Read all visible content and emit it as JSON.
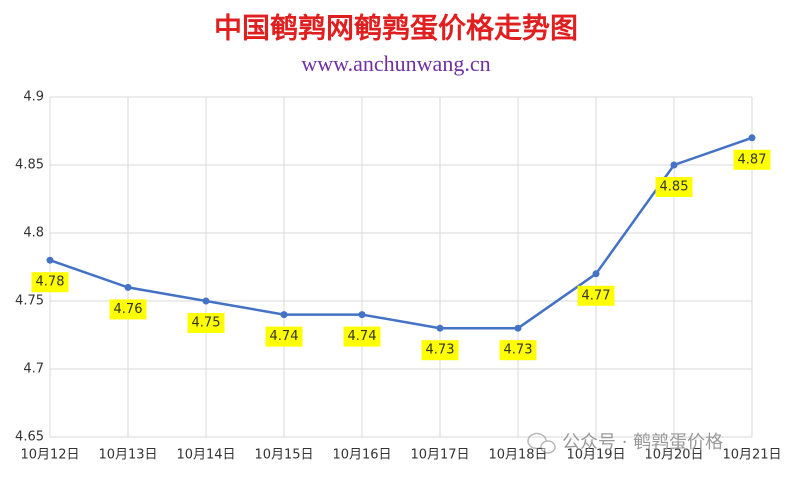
{
  "chart_data": {
    "type": "line",
    "title": "中国鹌鹑网鹌鹑蛋价格走势图",
    "subtitle": "www.anchunwang.cn",
    "watermark": "公众号 · 鹌鹑蛋价格",
    "categories": [
      "10月12日",
      "10月13日",
      "10月14日",
      "10月15日",
      "10月16日",
      "10月17日",
      "10月18日",
      "10月19日",
      "10月20日",
      "10月21日"
    ],
    "series": [
      {
        "name": "鹌鹑蛋价格",
        "color": "#4472c4",
        "values": [
          4.78,
          4.76,
          4.75,
          4.74,
          4.74,
          4.73,
          4.73,
          4.77,
          4.85,
          4.87
        ]
      }
    ],
    "ylim": [
      4.65,
      4.9
    ],
    "yticks": [
      4.65,
      4.7,
      4.75,
      4.8,
      4.85,
      4.9
    ],
    "grid": true,
    "label_color": "#ffff00"
  }
}
